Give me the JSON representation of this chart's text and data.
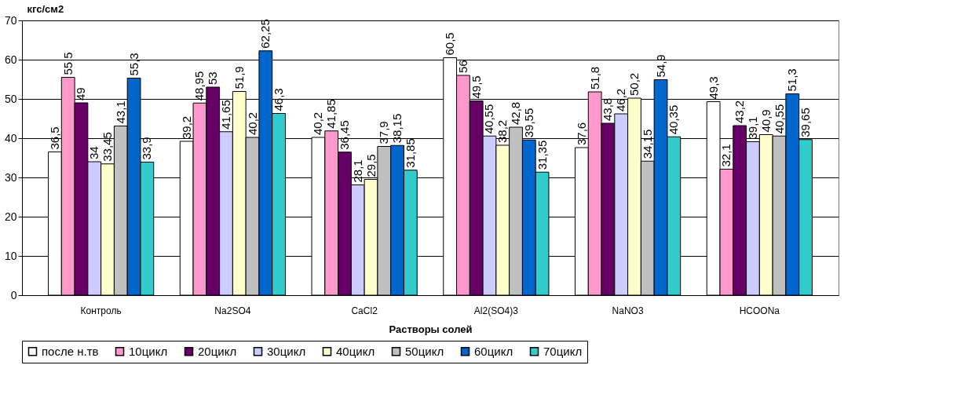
{
  "chart_data": {
    "type": "bar",
    "xlabel": "Растворы солей",
    "ylabel": "кгс/см2",
    "categories": [
      "Контроль",
      "Na2SO4",
      "CaCl2",
      "Al2(SO4)3",
      "NaNO3",
      "HCOONa"
    ],
    "series": [
      {
        "name": "после н.тв",
        "color": "#ffffff",
        "values": [
          36.5,
          39.2,
          40.2,
          60.5,
          37.6,
          49.3
        ],
        "value_labels": [
          "36,5",
          "39,2",
          "40,2",
          "60,5",
          "37,6",
          "49,3"
        ]
      },
      {
        "name": "10цикл",
        "color": "#ff99cc",
        "values": [
          55.5,
          48.95,
          41.85,
          56,
          51.8,
          32.1
        ],
        "value_labels": [
          "55,5",
          "48,95",
          "41,85",
          "56",
          "51,8",
          "32,1"
        ]
      },
      {
        "name": "20цикл",
        "color": "#660066",
        "values": [
          49,
          53,
          36.45,
          49.5,
          43.8,
          43.2
        ],
        "value_labels": [
          "49",
          "53",
          "36,45",
          "49,5",
          "43,8",
          "43,2"
        ]
      },
      {
        "name": "30цикл",
        "color": "#ccccff",
        "values": [
          34,
          41.65,
          28.1,
          40.55,
          46.2,
          39.1
        ],
        "value_labels": [
          "34",
          "41,65",
          "28,1",
          "40,55",
          "46,2",
          "39,1"
        ]
      },
      {
        "name": "40цикл",
        "color": "#ffffcc",
        "values": [
          33.45,
          51.9,
          29.5,
          38.2,
          50.2,
          40.9
        ],
        "value_labels": [
          "33,45",
          "51,9",
          "29,5",
          "38,2",
          "50,2",
          "40,9"
        ]
      },
      {
        "name": "50цикл",
        "color": "#c0c0c0",
        "values": [
          43.1,
          40.2,
          37.9,
          42.8,
          34.15,
          40.55
        ],
        "value_labels": [
          "43,1",
          "40,2",
          "37,9",
          "42,8",
          "34,15",
          "40,55"
        ]
      },
      {
        "name": "60цикл",
        "color": "#0066cc",
        "values": [
          55.3,
          62.25,
          38.15,
          39.55,
          54.9,
          51.3
        ],
        "value_labels": [
          "55,3",
          "62,25",
          "38,15",
          "39,55",
          "54,9",
          "51,3"
        ]
      },
      {
        "name": "70цикл",
        "color": "#33cccc",
        "values": [
          33.9,
          46.3,
          31.85,
          31.35,
          40.35,
          39.65
        ],
        "value_labels": [
          "33,9",
          "46,3",
          "31,85",
          "31,35",
          "40,35",
          "39,65"
        ]
      }
    ],
    "ylim": [
      0,
      70
    ],
    "yticks": [
      0,
      10,
      20,
      30,
      40,
      50,
      60,
      70
    ],
    "grid": "y",
    "legend": "bottom"
  }
}
